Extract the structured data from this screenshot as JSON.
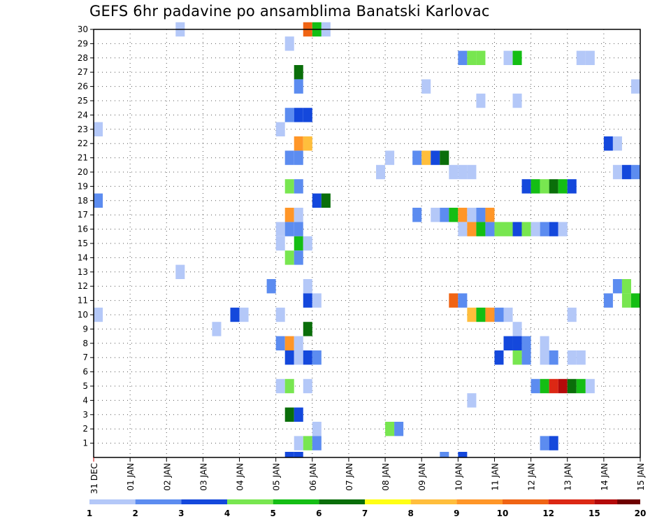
{
  "chart_data": {
    "type": "heatmap",
    "title": "GEFS 6hr padavine po ansamblima Banatski Karlovac",
    "xlabel": "",
    "ylabel": "",
    "x_ticks": [
      "31 DEC",
      "01 JAN",
      "02 JAN",
      "03 JAN",
      "04 JAN",
      "05 JAN",
      "06 JAN",
      "07 JAN",
      "08 JAN",
      "09 JAN",
      "10 JAN",
      "11 JAN",
      "12 JAN",
      "13 JAN",
      "14 JAN",
      "15 JAN"
    ],
    "x_range_days": [
      0,
      15
    ],
    "y_range_members": [
      0,
      30
    ],
    "y_ticks": [
      1,
      2,
      3,
      4,
      5,
      6,
      7,
      8,
      9,
      10,
      11,
      12,
      13,
      14,
      15,
      16,
      17,
      18,
      19,
      20,
      21,
      22,
      23,
      24,
      25,
      26,
      27,
      28,
      29,
      30
    ],
    "legend_levels": [
      "1",
      "2",
      "3",
      "4",
      "5",
      "6",
      "7",
      "8",
      "9",
      "10",
      "12",
      "15",
      "20"
    ],
    "legend_colors": [
      "#b4c8f8",
      "#5c8cf0",
      "#1448dc",
      "#78e650",
      "#14be14",
      "#0a6e0a",
      "#ffff14",
      "#ffbe3c",
      "#ff9628",
      "#f06414",
      "#dc2814",
      "#b40a0a",
      "#6e0000"
    ],
    "cells": [
      [
        30,
        2.25,
        1
      ],
      [
        30,
        5.75,
        10
      ],
      [
        30,
        6.0,
        5
      ],
      [
        30,
        6.25,
        1
      ],
      [
        29,
        5.25,
        1
      ],
      [
        28,
        10.0,
        2
      ],
      [
        28,
        10.25,
        4
      ],
      [
        28,
        10.5,
        4
      ],
      [
        28,
        11.25,
        1
      ],
      [
        28,
        11.5,
        5
      ],
      [
        28,
        13.25,
        1
      ],
      [
        28,
        13.5,
        1
      ],
      [
        27,
        5.5,
        6
      ],
      [
        26,
        5.5,
        2
      ],
      [
        26,
        9.0,
        1
      ],
      [
        26,
        14.75,
        1
      ],
      [
        25,
        10.5,
        1
      ],
      [
        25,
        11.5,
        1
      ],
      [
        24,
        5.25,
        2
      ],
      [
        24,
        5.5,
        3
      ],
      [
        24,
        5.75,
        3
      ],
      [
        23,
        0.0,
        1
      ],
      [
        23,
        5.0,
        1
      ],
      [
        22,
        5.5,
        9
      ],
      [
        22,
        5.75,
        8
      ],
      [
        22,
        14.0,
        3
      ],
      [
        22,
        14.25,
        1
      ],
      [
        21,
        5.25,
        2
      ],
      [
        21,
        5.5,
        2
      ],
      [
        21,
        8.0,
        1
      ],
      [
        21,
        8.75,
        2
      ],
      [
        21,
        9.0,
        8
      ],
      [
        21,
        9.25,
        3
      ],
      [
        21,
        9.5,
        6
      ],
      [
        20,
        7.75,
        1
      ],
      [
        20,
        9.75,
        1
      ],
      [
        20,
        10.0,
        1
      ],
      [
        20,
        10.25,
        1
      ],
      [
        20,
        14.25,
        1
      ],
      [
        20,
        14.5,
        3
      ],
      [
        20,
        14.75,
        2
      ],
      [
        19,
        5.25,
        4
      ],
      [
        19,
        5.5,
        2
      ],
      [
        19,
        11.75,
        3
      ],
      [
        19,
        12.0,
        5
      ],
      [
        19,
        12.25,
        4
      ],
      [
        19,
        12.5,
        6
      ],
      [
        19,
        12.75,
        5
      ],
      [
        19,
        13.0,
        3
      ],
      [
        18,
        0.0,
        2
      ],
      [
        18,
        6.0,
        3
      ],
      [
        18,
        6.25,
        6
      ],
      [
        17,
        5.25,
        9
      ],
      [
        17,
        5.5,
        1
      ],
      [
        17,
        8.75,
        2
      ],
      [
        17,
        9.25,
        1
      ],
      [
        17,
        9.5,
        2
      ],
      [
        17,
        9.75,
        5
      ],
      [
        17,
        10.0,
        9
      ],
      [
        17,
        10.25,
        1
      ],
      [
        17,
        10.5,
        2
      ],
      [
        17,
        10.75,
        9
      ],
      [
        16,
        5.0,
        1
      ],
      [
        16,
        5.25,
        2
      ],
      [
        16,
        5.5,
        2
      ],
      [
        16,
        10.0,
        1
      ],
      [
        16,
        10.25,
        9
      ],
      [
        16,
        10.5,
        5
      ],
      [
        16,
        10.75,
        2
      ],
      [
        16,
        11.0,
        4
      ],
      [
        16,
        11.25,
        4
      ],
      [
        16,
        11.5,
        3
      ],
      [
        16,
        11.75,
        4
      ],
      [
        16,
        12.0,
        1
      ],
      [
        16,
        12.25,
        2
      ],
      [
        16,
        12.5,
        3
      ],
      [
        16,
        12.75,
        1
      ],
      [
        15,
        5.0,
        1
      ],
      [
        15,
        5.5,
        5
      ],
      [
        15,
        5.75,
        1
      ],
      [
        14,
        5.25,
        4
      ],
      [
        14,
        5.5,
        2
      ],
      [
        13,
        2.25,
        1
      ],
      [
        12,
        4.75,
        2
      ],
      [
        12,
        5.75,
        1
      ],
      [
        12,
        14.25,
        2
      ],
      [
        12,
        14.5,
        4
      ],
      [
        11,
        5.75,
        3
      ],
      [
        11,
        6.0,
        1
      ],
      [
        11,
        9.75,
        10
      ],
      [
        11,
        10.0,
        2
      ],
      [
        11,
        14.0,
        2
      ],
      [
        11,
        14.5,
        4
      ],
      [
        11,
        14.75,
        5
      ],
      [
        10,
        0.0,
        1
      ],
      [
        10,
        3.75,
        3
      ],
      [
        10,
        4.0,
        1
      ],
      [
        10,
        5.0,
        1
      ],
      [
        10,
        10.25,
        8
      ],
      [
        10,
        10.5,
        5
      ],
      [
        10,
        10.75,
        9
      ],
      [
        10,
        11.0,
        2
      ],
      [
        10,
        11.25,
        1
      ],
      [
        10,
        13.0,
        1
      ],
      [
        9,
        3.25,
        1
      ],
      [
        9,
        5.75,
        6
      ],
      [
        9,
        11.5,
        1
      ],
      [
        8,
        5.0,
        2
      ],
      [
        8,
        5.25,
        9
      ],
      [
        8,
        5.5,
        1
      ],
      [
        8,
        11.25,
        3
      ],
      [
        8,
        11.5,
        3
      ],
      [
        8,
        11.75,
        2
      ],
      [
        8,
        12.25,
        1
      ],
      [
        7,
        5.25,
        3
      ],
      [
        7,
        5.5,
        1
      ],
      [
        7,
        5.75,
        3
      ],
      [
        7,
        6.0,
        2
      ],
      [
        7,
        11.0,
        3
      ],
      [
        7,
        11.5,
        4
      ],
      [
        7,
        11.75,
        2
      ],
      [
        7,
        12.25,
        1
      ],
      [
        7,
        12.5,
        2
      ],
      [
        7,
        13.0,
        1
      ],
      [
        7,
        13.25,
        1
      ],
      [
        5,
        5.0,
        1
      ],
      [
        5,
        5.25,
        4
      ],
      [
        5,
        5.75,
        1
      ],
      [
        5,
        12.0,
        2
      ],
      [
        5,
        12.25,
        5
      ],
      [
        5,
        12.5,
        11
      ],
      [
        5,
        12.75,
        12
      ],
      [
        5,
        13.0,
        6
      ],
      [
        5,
        13.25,
        5
      ],
      [
        5,
        13.5,
        1
      ],
      [
        4,
        10.25,
        1
      ],
      [
        3,
        5.25,
        6
      ],
      [
        3,
        5.5,
        3
      ],
      [
        2,
        6.0,
        1
      ],
      [
        2,
        8.0,
        4
      ],
      [
        2,
        8.25,
        2
      ],
      [
        1,
        5.5,
        1
      ],
      [
        1,
        5.75,
        4
      ],
      [
        1,
        6.0,
        2
      ],
      [
        1,
        12.25,
        2
      ],
      [
        1,
        12.5,
        3
      ],
      [
        0,
        5.25,
        3
      ],
      [
        0,
        5.5,
        3
      ],
      [
        0,
        9.5,
        2
      ],
      [
        0,
        10.0,
        3
      ]
    ]
  }
}
